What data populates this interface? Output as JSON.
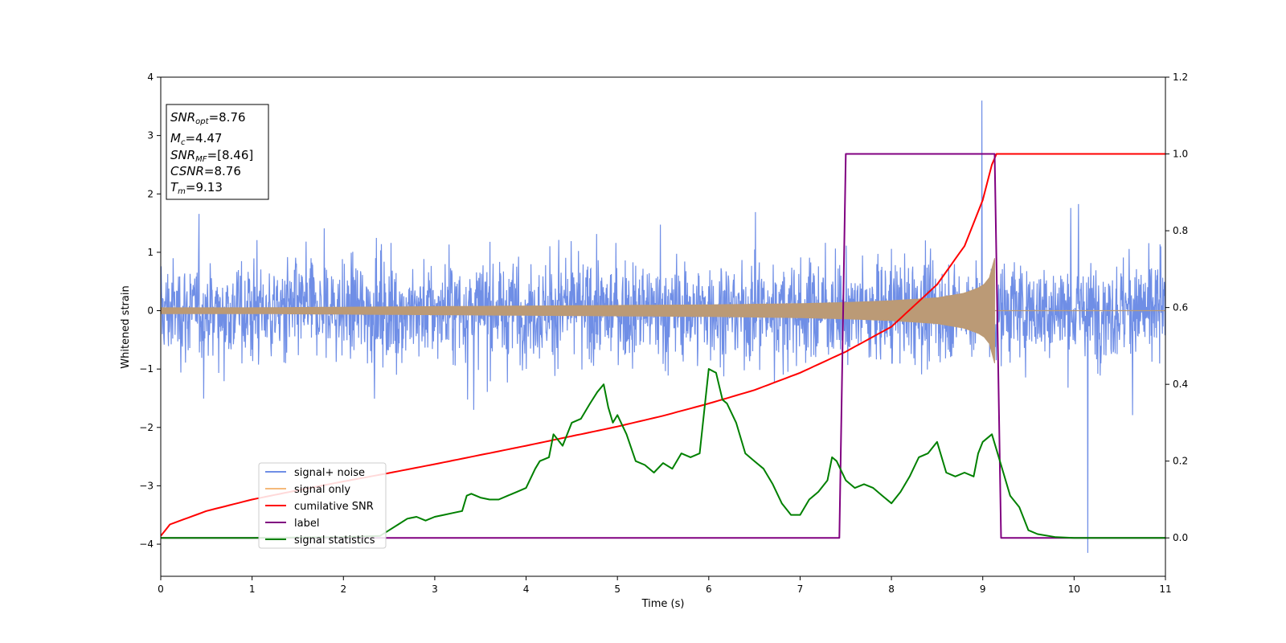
{
  "chart_data": {
    "type": "line",
    "title": "",
    "xlabel": "Time (s)",
    "ylabel_left": "Whitened strain",
    "ylabel_right": "",
    "xlim": [
      0,
      11
    ],
    "ylim_left": [
      -4.55,
      4.0
    ],
    "ylim_right": [
      -0.1,
      1.2
    ],
    "x_ticks": [
      0,
      1,
      2,
      3,
      4,
      5,
      6,
      7,
      8,
      9,
      10,
      11
    ],
    "y_ticks_left": [
      4,
      3,
      2,
      1,
      0,
      -1,
      -2,
      -3,
      -4
    ],
    "y_ticks_left_labels": [
      "4",
      "3",
      "2",
      "1",
      "0",
      "−1",
      "−2",
      "−3",
      "−4"
    ],
    "y_ticks_right": [
      1.2,
      1.0,
      0.8,
      0.6,
      0.4,
      0.2,
      0.0
    ],
    "y_ticks_right_labels": [
      "1.2",
      "1.0",
      "0.8",
      "0.6",
      "0.4",
      "0.2",
      "0.0"
    ],
    "grid": false,
    "legend_position": "lower-left",
    "colors": {
      "signal_noise": "#6f8ee6",
      "signal_only": "#f5b97a",
      "signal_only_overlay": "#bb9a76",
      "cumulative_snr": "#ff0000",
      "label": "#800080",
      "signal_statistics": "#008000"
    },
    "annotation": {
      "line1_main": "SNR",
      "line1_sub": "opt",
      "line1_val": "=8.76",
      "line2_main": "M",
      "line2_sub": "c",
      "line2_val": "=4.47",
      "line3_main": "SNR",
      "line3_sub": "MF",
      "line3_val": "=[8.46]",
      "line4_main": "CSNR",
      "line4_val": "=8.76",
      "line5_main": "T",
      "line5_sub": "m",
      "line5_val": "=9.13"
    },
    "series": [
      {
        "name": "signal+ noise",
        "axis": "left",
        "description_range": [
          -2.5,
          2.5
        ],
        "max_peak": {
          "x": 8.99,
          "y": 3.6
        },
        "min_peak": {
          "x": 10.15,
          "y": -4.15
        }
      },
      {
        "name": "signal only",
        "axis": "left",
        "envelope": {
          "x": [
            0,
            1,
            2,
            3,
            4,
            5,
            6,
            7,
            7.5,
            8,
            8.5,
            8.8,
            9.0,
            9.1,
            9.13
          ],
          "y": [
            0.05,
            0.05,
            0.06,
            0.07,
            0.08,
            0.09,
            0.1,
            0.12,
            0.14,
            0.17,
            0.22,
            0.3,
            0.42,
            0.62,
            0.9
          ]
        },
        "end_x": 9.13
      },
      {
        "name": "cumilative SNR",
        "axis": "right",
        "x": [
          0,
          0.1,
          0.5,
          1,
          1.5,
          2,
          2.5,
          3,
          3.5,
          4,
          4.5,
          5,
          5.5,
          6,
          6.5,
          7,
          7.5,
          8,
          8.5,
          8.8,
          9.0,
          9.13,
          9.2,
          11
        ],
        "y": [
          0.005,
          0.035,
          0.07,
          0.1,
          0.124,
          0.147,
          0.169,
          0.192,
          0.216,
          0.24,
          0.265,
          0.29,
          0.318,
          0.35,
          0.385,
          0.43,
          0.485,
          0.55,
          0.66,
          0.76,
          0.88,
          1.0,
          1.0,
          1.0
        ]
      },
      {
        "name": "label",
        "axis": "right",
        "x": [
          0,
          7.43,
          7.5,
          9.13,
          9.2,
          11
        ],
        "y": [
          0,
          0,
          1,
          1,
          0,
          0
        ]
      },
      {
        "name": "signal statistics",
        "axis": "right",
        "x": [
          0,
          1,
          2,
          2.4,
          2.5,
          2.6,
          2.7,
          2.8,
          2.9,
          3.0,
          3.1,
          3.2,
          3.3,
          3.35,
          3.4,
          3.5,
          3.6,
          3.7,
          3.8,
          3.9,
          4.0,
          4.1,
          4.15,
          4.25,
          4.3,
          4.4,
          4.5,
          4.6,
          4.7,
          4.78,
          4.85,
          4.9,
          4.95,
          5.0,
          5.1,
          5.2,
          5.3,
          5.4,
          5.5,
          5.6,
          5.7,
          5.8,
          5.9,
          6.0,
          6.08,
          6.15,
          6.2,
          6.3,
          6.4,
          6.5,
          6.6,
          6.7,
          6.8,
          6.9,
          7.0,
          7.1,
          7.2,
          7.3,
          7.35,
          7.4,
          7.5,
          7.6,
          7.7,
          7.8,
          7.9,
          8.0,
          8.1,
          8.2,
          8.3,
          8.4,
          8.5,
          8.6,
          8.7,
          8.8,
          8.9,
          8.95,
          9.0,
          9.1,
          9.2,
          9.3,
          9.4,
          9.5,
          9.6,
          9.8,
          10,
          11
        ],
        "y": [
          0,
          0,
          0.002,
          0.005,
          0.02,
          0.035,
          0.05,
          0.055,
          0.045,
          0.055,
          0.06,
          0.065,
          0.07,
          0.11,
          0.115,
          0.105,
          0.1,
          0.1,
          0.11,
          0.12,
          0.13,
          0.18,
          0.2,
          0.21,
          0.27,
          0.24,
          0.3,
          0.31,
          0.35,
          0.38,
          0.4,
          0.34,
          0.3,
          0.32,
          0.27,
          0.2,
          0.19,
          0.17,
          0.195,
          0.18,
          0.22,
          0.21,
          0.22,
          0.44,
          0.43,
          0.36,
          0.35,
          0.3,
          0.22,
          0.2,
          0.18,
          0.14,
          0.09,
          0.06,
          0.06,
          0.1,
          0.12,
          0.15,
          0.21,
          0.2,
          0.15,
          0.13,
          0.14,
          0.13,
          0.11,
          0.09,
          0.12,
          0.16,
          0.21,
          0.22,
          0.25,
          0.17,
          0.16,
          0.17,
          0.16,
          0.22,
          0.25,
          0.27,
          0.19,
          0.11,
          0.08,
          0.02,
          0.01,
          0.002,
          0,
          0
        ]
      }
    ]
  }
}
